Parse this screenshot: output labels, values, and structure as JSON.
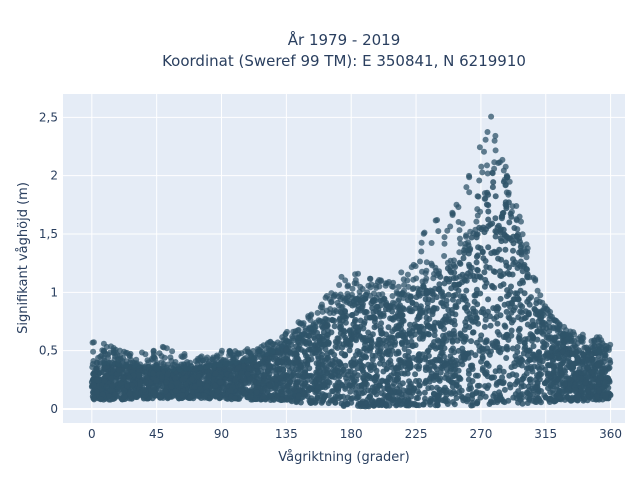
{
  "chart_data": {
    "type": "scatter",
    "title_lines": [
      "År 1979 - 2019",
      "Koordinat (Sweref 99 TM): E 350841, N 6219910"
    ],
    "xlabel": "Vågriktning (grader)",
    "ylabel": "Signifikant våghöjd (m)",
    "xlim": [
      -20,
      370
    ],
    "ylim": [
      -0.12,
      2.7
    ],
    "x_ticks": [
      0,
      45,
      90,
      135,
      180,
      225,
      270,
      315,
      360
    ],
    "x_tick_labels": [
      "0",
      "45",
      "90",
      "135",
      "180",
      "225",
      "270",
      "315",
      "360"
    ],
    "y_ticks": [
      0,
      0.5,
      1,
      1.5,
      2,
      2.5
    ],
    "y_tick_labels": [
      "0",
      "0,5",
      "1",
      "1,5",
      "2",
      "2,5"
    ],
    "grid": true,
    "marker_color": "#2f5469",
    "series": [
      {
        "direction_deg": [
          0,
          10,
          20,
          30,
          40,
          50,
          60,
          70,
          80,
          90,
          100,
          110,
          120,
          130,
          140,
          150,
          160,
          170,
          180,
          190,
          200,
          210,
          220,
          230,
          240,
          250,
          260,
          265,
          270,
          275,
          280,
          285,
          290,
          295,
          300,
          305,
          310,
          320,
          330,
          340,
          350,
          360
        ],
        "hs_min_m": [
          0.08,
          0.08,
          0.08,
          0.09,
          0.09,
          0.09,
          0.09,
          0.09,
          0.09,
          0.09,
          0.08,
          0.08,
          0.08,
          0.07,
          0.06,
          0.05,
          0.04,
          0.03,
          0.02,
          0.02,
          0.02,
          0.03,
          0.03,
          0.03,
          0.03,
          0.03,
          0.03,
          0.03,
          0.03,
          0.03,
          0.03,
          0.03,
          0.03,
          0.03,
          0.04,
          0.04,
          0.05,
          0.06,
          0.07,
          0.07,
          0.08,
          0.08
        ],
        "hs_dense_upper_m": [
          0.35,
          0.4,
          0.38,
          0.37,
          0.36,
          0.35,
          0.34,
          0.35,
          0.36,
          0.38,
          0.4,
          0.42,
          0.46,
          0.52,
          0.58,
          0.66,
          0.74,
          0.84,
          0.92,
          0.95,
          0.93,
          0.9,
          0.95,
          1.05,
          1.15,
          1.25,
          1.4,
          1.5,
          1.65,
          1.9,
          2.05,
          2.0,
          1.75,
          1.55,
          1.3,
          1.05,
          0.85,
          0.7,
          0.6,
          0.55,
          0.5,
          0.42
        ],
        "hs_max_m": [
          0.58,
          0.56,
          0.52,
          0.5,
          0.5,
          0.56,
          0.48,
          0.46,
          0.46,
          0.5,
          0.5,
          0.52,
          0.56,
          0.62,
          0.72,
          0.8,
          0.92,
          1.1,
          1.2,
          1.13,
          1.15,
          1.1,
          1.25,
          1.55,
          1.64,
          1.72,
          1.95,
          2.12,
          2.3,
          2.6,
          2.48,
          2.2,
          2.0,
          1.75,
          1.52,
          1.25,
          1.0,
          0.8,
          0.68,
          0.64,
          0.62,
          0.6
        ]
      }
    ]
  }
}
